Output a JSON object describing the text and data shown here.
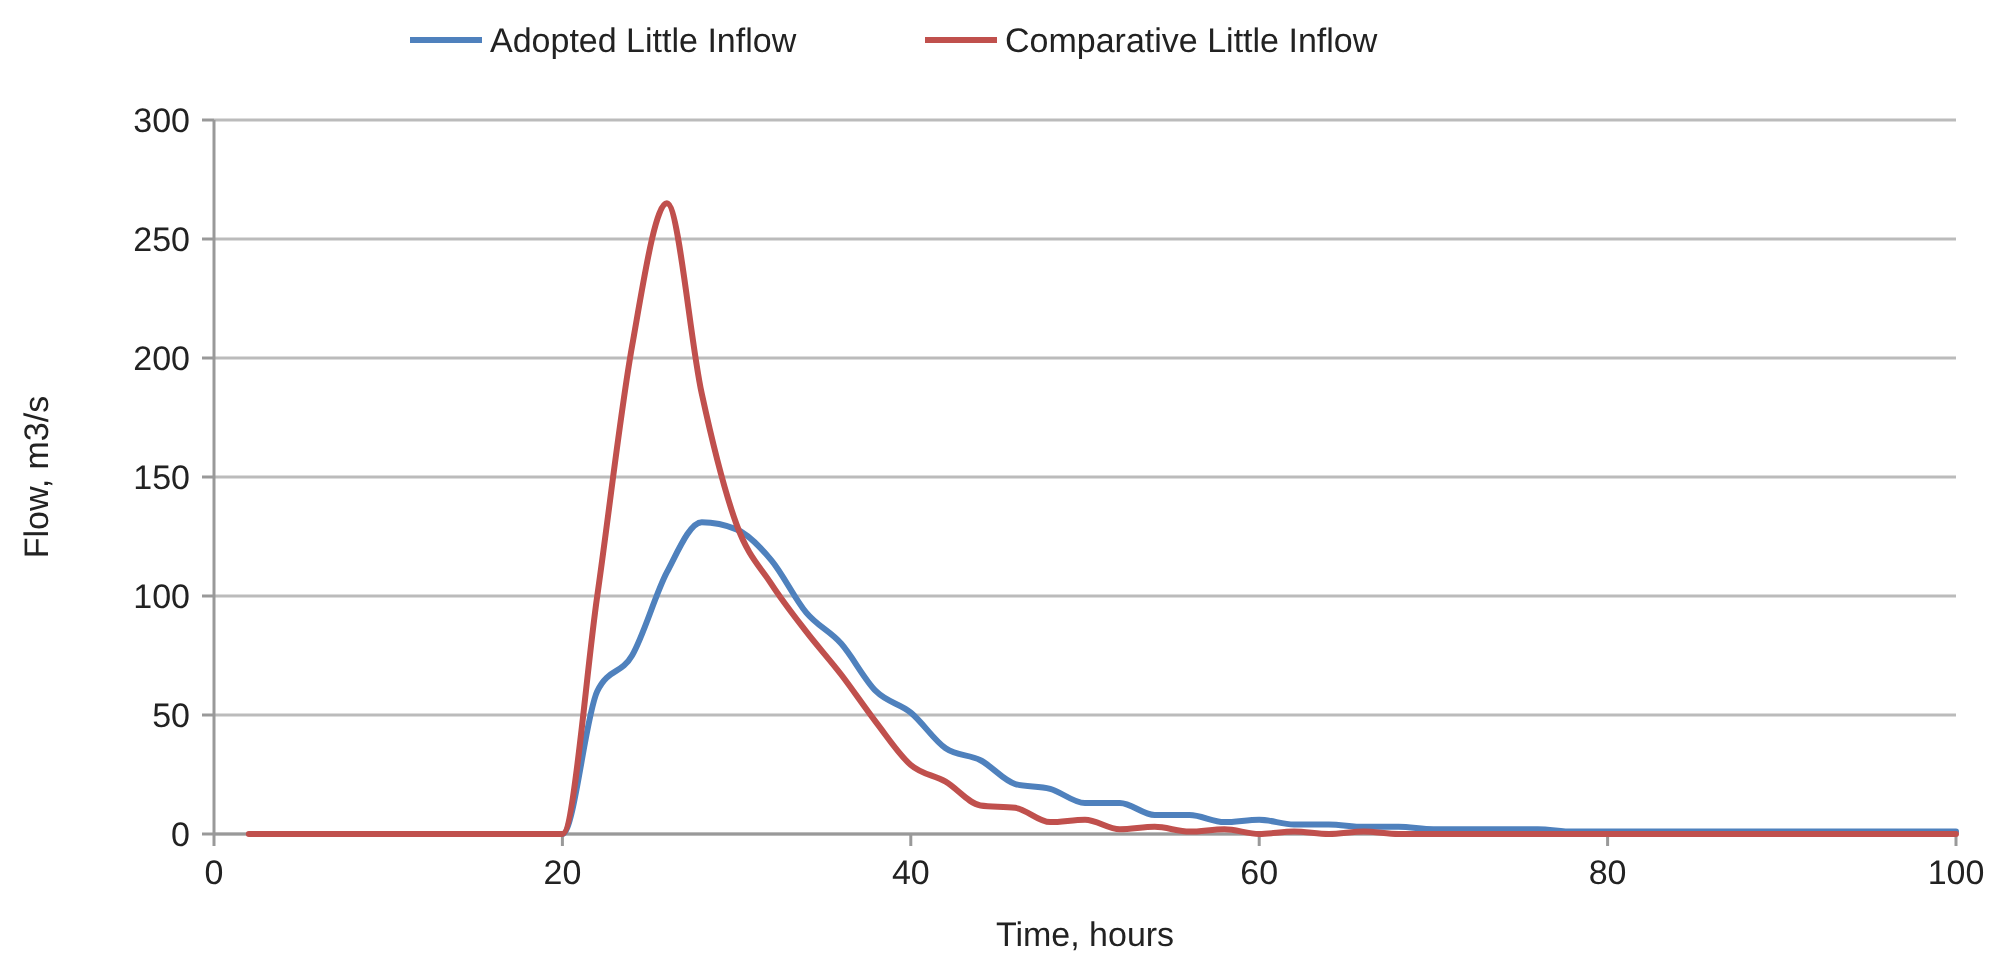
{
  "chart_data": {
    "type": "line",
    "xlabel": "Time, hours",
    "ylabel": "Flow, m3/s",
    "x": [
      2,
      4,
      6,
      8,
      10,
      12,
      14,
      16,
      18,
      20,
      22,
      24,
      26,
      28,
      30,
      32,
      34,
      36,
      38,
      40,
      42,
      44,
      46,
      48,
      50,
      52,
      54,
      56,
      58,
      60,
      62,
      64,
      66,
      68,
      70,
      72,
      74,
      76,
      78,
      80,
      82,
      84,
      86,
      88,
      90,
      92,
      94,
      96,
      98,
      100
    ],
    "series": [
      {
        "name": "Adopted Little Inflow",
        "color": "#4f81bd",
        "values": [
          null,
          null,
          null,
          null,
          null,
          null,
          null,
          null,
          0,
          0,
          60,
          75,
          110,
          131,
          128,
          115,
          93,
          80,
          60,
          51,
          36,
          31,
          21,
          19,
          13,
          13,
          8,
          8,
          5,
          6,
          4,
          4,
          3,
          3,
          2,
          2,
          2,
          2,
          1,
          1,
          1,
          1,
          1,
          1,
          1,
          1,
          1,
          1,
          1,
          1
        ]
      },
      {
        "name": "Comparative Little Inflow",
        "color": "#c0504d",
        "values": [
          0,
          0,
          0,
          0,
          0,
          0,
          0,
          0,
          0,
          0,
          100,
          205,
          265,
          185,
          130,
          105,
          85,
          67,
          47,
          29,
          22,
          12,
          11,
          5,
          6,
          2,
          3,
          1,
          2,
          0,
          1,
          0,
          1,
          0,
          0,
          0,
          0,
          0,
          0,
          0,
          0,
          0,
          0,
          0,
          0,
          0,
          0,
          0,
          0,
          0
        ]
      }
    ],
    "xlim": [
      0,
      100
    ],
    "xticks": [
      0,
      20,
      40,
      60,
      80,
      100
    ],
    "ylim": [
      0,
      300
    ],
    "yticks": [
      0,
      50,
      100,
      150,
      200,
      250,
      300
    ],
    "grid": "y",
    "legend": "top",
    "marker": "none",
    "line_style": "solid"
  }
}
